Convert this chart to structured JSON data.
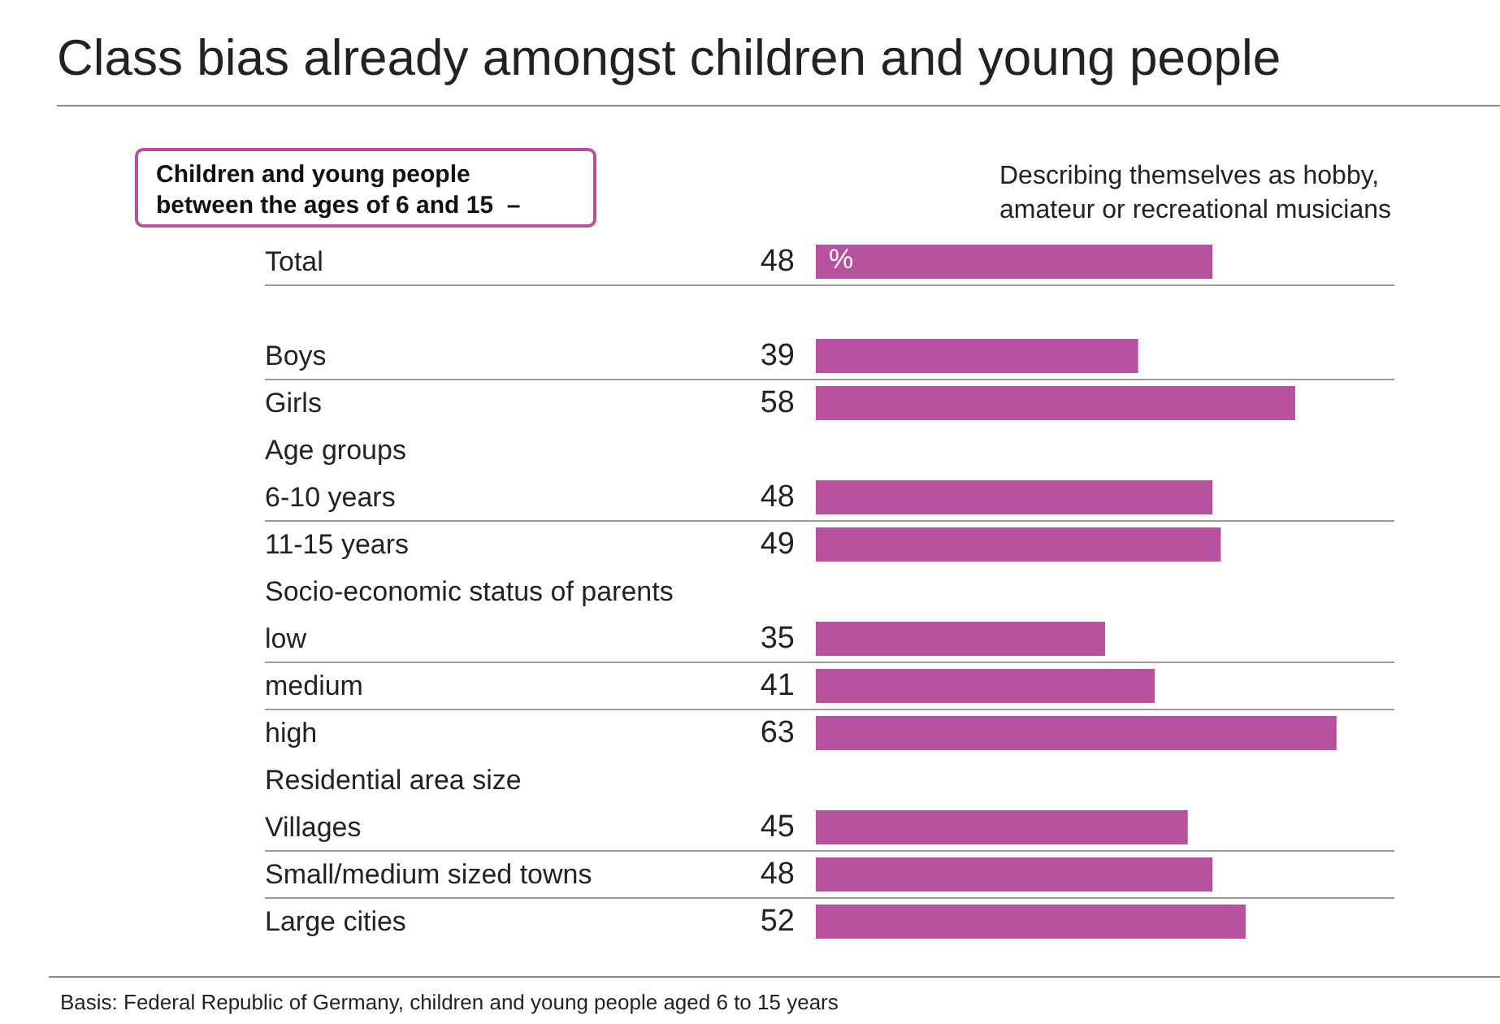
{
  "chart_data": {
    "type": "bar",
    "orientation": "horizontal",
    "title": "Class bias already amongst children and young people",
    "subtitle": "Children and young people\nbetween the ages of 6 and 15  –",
    "xlabel": "Describing themselves as hobby,\namateur or recreational musicians",
    "categories": [
      "Total",
      null,
      "Boys",
      "Girls",
      "Age groups",
      "6-10 years",
      "11-15 years",
      "Socio-economic status of parents",
      "low",
      "medium",
      "high",
      "Residential area size",
      "Villages",
      "Small/medium sized towns",
      "Large cities"
    ],
    "values": [
      48,
      null,
      39,
      58,
      null,
      48,
      49,
      null,
      35,
      41,
      63,
      null,
      45,
      48,
      52
    ],
    "color": "#b5519f",
    "data_labels": true,
    "annotations": [
      "%",
      "Basis: Federal Republic of Germany, children and young people aged 6 to 15 years"
    ]
  }
}
